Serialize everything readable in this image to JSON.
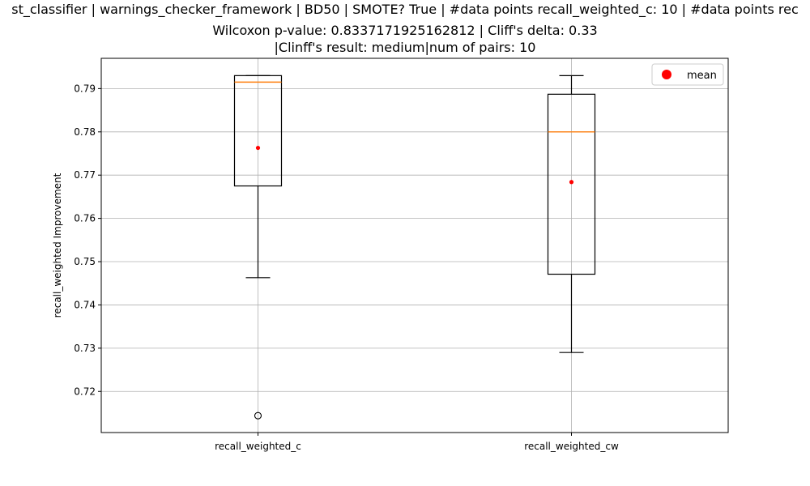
{
  "chart_data": {
    "type": "box",
    "title": [
      "st_classifier | warnings_checker_framework | BD50 | SMOTE? True | #data points recall_weighted_c: 10 | #data points rec",
      "Wilcoxon p-value: 0.8337171925162812 | Cliff's delta: 0.33",
      "|Clinff's result: medium|num of pairs: 10"
    ],
    "xlabel": "",
    "ylabel": "recall_weighted Improvement",
    "ylim": [
      0.7105,
      0.797
    ],
    "yticks": [
      0.72,
      0.73,
      0.74,
      0.75,
      0.76,
      0.77,
      0.78,
      0.79
    ],
    "ytick_labels": [
      "0.72",
      "0.73",
      "0.74",
      "0.75",
      "0.76",
      "0.77",
      "0.78",
      "0.79"
    ],
    "grid": true,
    "legend": {
      "position": "top-right",
      "label": "mean"
    },
    "categories": [
      "recall_weighted_c",
      "recall_weighted_cw"
    ],
    "boxes": [
      {
        "category": "recall_weighted_c",
        "whisker_low": 0.7463,
        "q1": 0.7675,
        "median": 0.7915,
        "q3": 0.793,
        "whisker_high": 0.793,
        "mean": 0.7763,
        "outliers": [
          0.7144
        ]
      },
      {
        "category": "recall_weighted_cw",
        "whisker_low": 0.729,
        "q1": 0.7471,
        "median": 0.78,
        "q3": 0.7887,
        "whisker_high": 0.793,
        "mean": 0.7684,
        "outliers": []
      }
    ],
    "colors": {
      "box": "#000000",
      "median": "#ff7f0e",
      "mean": "#ff0000",
      "grid": "#b0b0b0"
    }
  }
}
